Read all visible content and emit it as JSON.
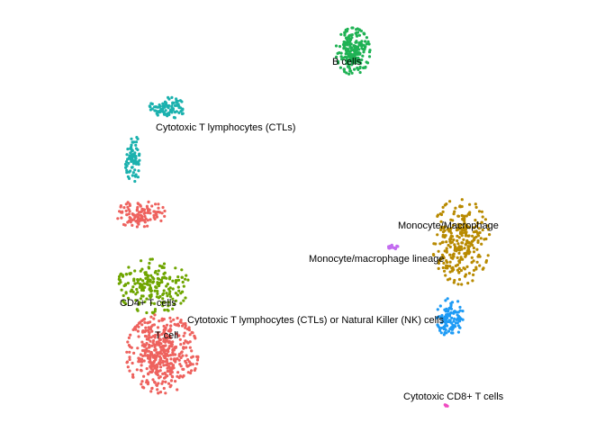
{
  "chart_data": {
    "type": "scatter",
    "title": "",
    "xlabel": "",
    "ylabel": "",
    "grid": false,
    "legend": "none",
    "clusters": [
      {
        "label": "B cells",
        "color": "#1fb254",
        "center": [
          392,
          57
        ],
        "spread": [
          19,
          26
        ],
        "n": 220
      },
      {
        "label": "Cytotoxic T lymphocytes (CTLs)",
        "color": "#1bb1ae",
        "center": [
          186,
          120
        ],
        "spread": [
          20,
          12
        ],
        "n": 90
      },
      {
        "label": "",
        "color": "#1bb1ae",
        "center": [
          148,
          176
        ],
        "spread": [
          9,
          26
        ],
        "n": 80
      },
      {
        "label": "",
        "color": "#ee625e",
        "center": [
          154,
          237
        ],
        "spread": [
          30,
          15
        ],
        "n": 110
      },
      {
        "label": "CD4+ T cells",
        "color": "#6fa500",
        "center": [
          170,
          318
        ],
        "spread": [
          40,
          30
        ],
        "n": 200
      },
      {
        "label": "T cell",
        "color": "#ee625e",
        "center": [
          180,
          393
        ],
        "spread": [
          40,
          44
        ],
        "n": 460
      },
      {
        "label": "Monocyte/Macrophage",
        "color": "#b88a00",
        "center": [
          512,
          268
        ],
        "spread": [
          32,
          48
        ],
        "n": 280
      },
      {
        "label": "Monocyte/macrophage lineage",
        "color": "#c36cf0",
        "center": [
          436,
          275
        ],
        "spread": [
          11,
          3
        ],
        "n": 14
      },
      {
        "label": "Cytotoxic T lymphocytes (CTLs) or Natural Killer (NK) cells",
        "color": "#1e9bf5",
        "center": [
          500,
          353
        ],
        "spread": [
          15,
          22
        ],
        "n": 110
      },
      {
        "label": "Cytotoxic CD8+ T cells",
        "color": "#f04bc1",
        "center": [
          496,
          450
        ],
        "spread": [
          2,
          2
        ],
        "n": 4
      }
    ],
    "annotations": [
      {
        "text": "B cells"
      },
      {
        "text": "Cytotoxic T lymphocytes (CTLs)"
      },
      {
        "text": "Monocyte/Macrophage"
      },
      {
        "text": "Monocyte/macrophage lineage"
      },
      {
        "text": "CD4+ T cells"
      },
      {
        "text": "Cytotoxic T lymphocytes (CTLs) or Natural Killer (NK) cells"
      },
      {
        "text": "T cell"
      },
      {
        "text": "Cytotoxic CD8+ T cells"
      }
    ]
  }
}
